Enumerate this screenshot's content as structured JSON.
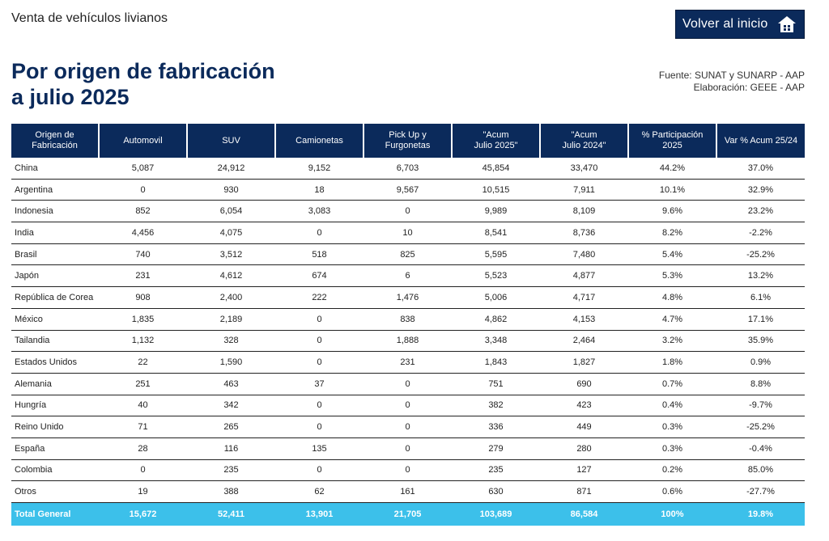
{
  "page": {
    "top_title": "Venta de vehículos livianos",
    "heading": "Por origen de fabricación\na julio 2025",
    "source_line1": "Fuente: SUNAT y SUNARP - AAP",
    "source_line2": "Elaboración: GEEE - AAP",
    "home_button_label": "Volver al inicio",
    "home_icon": "home-icon"
  },
  "colors": {
    "header_bg": "#0b2a5b",
    "total_bg": "#3cc0ea"
  },
  "table": {
    "headers": [
      "Origen de\nFabricación",
      "Automovil",
      "SUV",
      "Camionetas",
      "Pick Up y\nFurgonetas",
      "\"Acum\nJulio 2025\"",
      "\"Acum\nJulio 2024\"",
      "% Participación\n2025",
      "Var % Acum 25/24"
    ],
    "rows": [
      [
        "China",
        "5,087",
        "24,912",
        "9,152",
        "6,703",
        "45,854",
        "33,470",
        "44.2%",
        "37.0%"
      ],
      [
        "Argentina",
        "0",
        "930",
        "18",
        "9,567",
        "10,515",
        "7,911",
        "10.1%",
        "32.9%"
      ],
      [
        "Indonesia",
        "852",
        "6,054",
        "3,083",
        "0",
        "9,989",
        "8,109",
        "9.6%",
        "23.2%"
      ],
      [
        "India",
        "4,456",
        "4,075",
        "0",
        "10",
        "8,541",
        "8,736",
        "8.2%",
        "-2.2%"
      ],
      [
        "Brasil",
        "740",
        "3,512",
        "518",
        "825",
        "5,595",
        "7,480",
        "5.4%",
        "-25.2%"
      ],
      [
        "Japón",
        "231",
        "4,612",
        "674",
        "6",
        "5,523",
        "4,877",
        "5.3%",
        "13.2%"
      ],
      [
        "República de Corea",
        "908",
        "2,400",
        "222",
        "1,476",
        "5,006",
        "4,717",
        "4.8%",
        "6.1%"
      ],
      [
        "México",
        "1,835",
        "2,189",
        "0",
        "838",
        "4,862",
        "4,153",
        "4.7%",
        "17.1%"
      ],
      [
        "Tailandia",
        "1,132",
        "328",
        "0",
        "1,888",
        "3,348",
        "2,464",
        "3.2%",
        "35.9%"
      ],
      [
        "Estados Unidos",
        "22",
        "1,590",
        "0",
        "231",
        "1,843",
        "1,827",
        "1.8%",
        "0.9%"
      ],
      [
        "Alemania",
        "251",
        "463",
        "37",
        "0",
        "751",
        "690",
        "0.7%",
        "8.8%"
      ],
      [
        "Hungría",
        "40",
        "342",
        "0",
        "0",
        "382",
        "423",
        "0.4%",
        "-9.7%"
      ],
      [
        "Reino Unido",
        "71",
        "265",
        "0",
        "0",
        "336",
        "449",
        "0.3%",
        "-25.2%"
      ],
      [
        "España",
        "28",
        "116",
        "135",
        "0",
        "279",
        "280",
        "0.3%",
        "-0.4%"
      ],
      [
        "Colombia",
        "0",
        "235",
        "0",
        "0",
        "235",
        "127",
        "0.2%",
        "85.0%"
      ],
      [
        "Otros",
        "19",
        "388",
        "62",
        "161",
        "630",
        "871",
        "0.6%",
        "-27.7%"
      ]
    ],
    "total": [
      "Total General",
      "15,672",
      "52,411",
      "13,901",
      "21,705",
      "103,689",
      "86,584",
      "100%",
      "19.8%"
    ]
  }
}
